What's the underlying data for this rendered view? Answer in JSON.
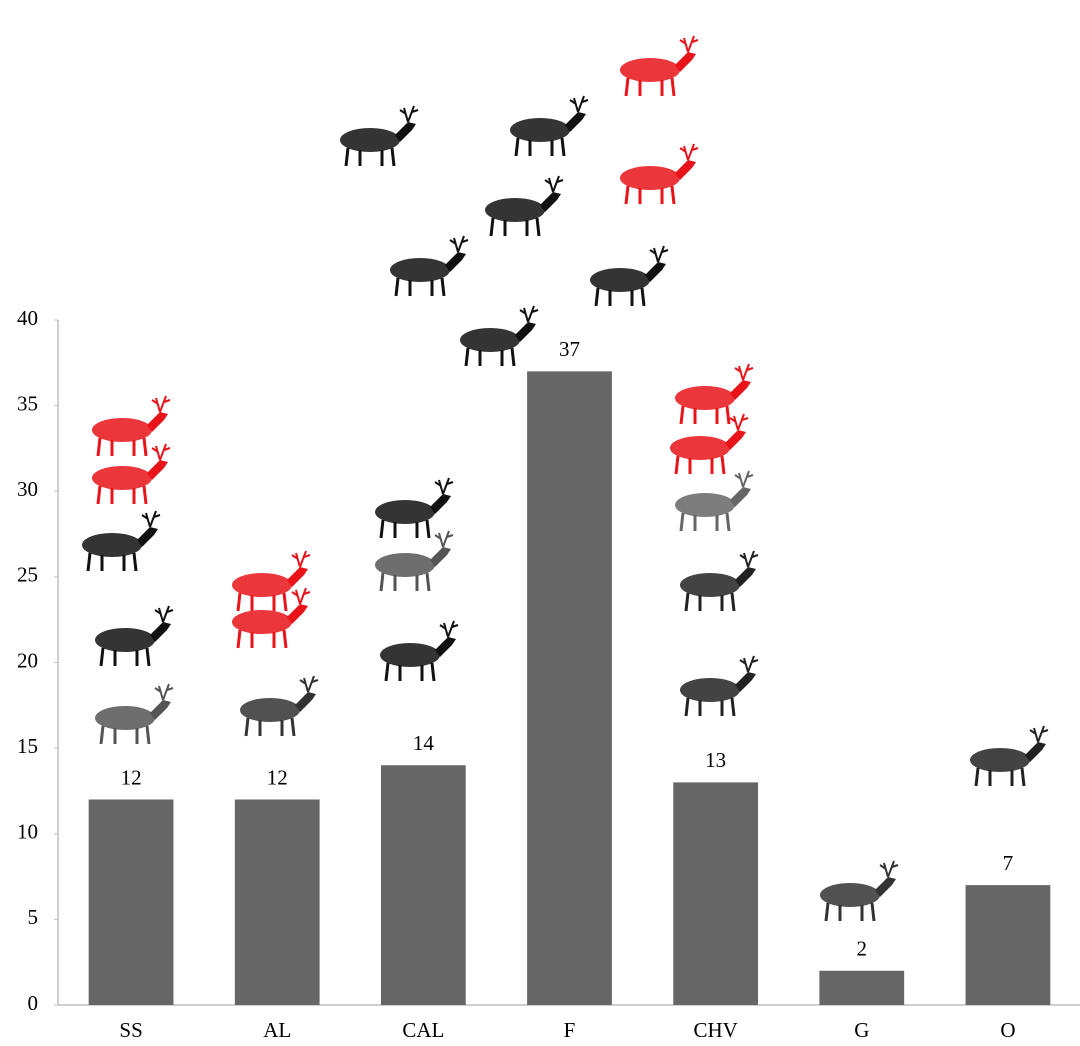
{
  "chart_data": {
    "type": "bar",
    "categories": [
      "SS",
      "AL",
      "CAL",
      "F",
      "CHV",
      "G",
      "O"
    ],
    "values": [
      12,
      12,
      14,
      37,
      13,
      2,
      7
    ],
    "color": "#666666",
    "ylim": [
      0,
      40
    ],
    "yticks": [
      0,
      5,
      10,
      15,
      20,
      25,
      30,
      35,
      40
    ],
    "grid": false
  }
}
